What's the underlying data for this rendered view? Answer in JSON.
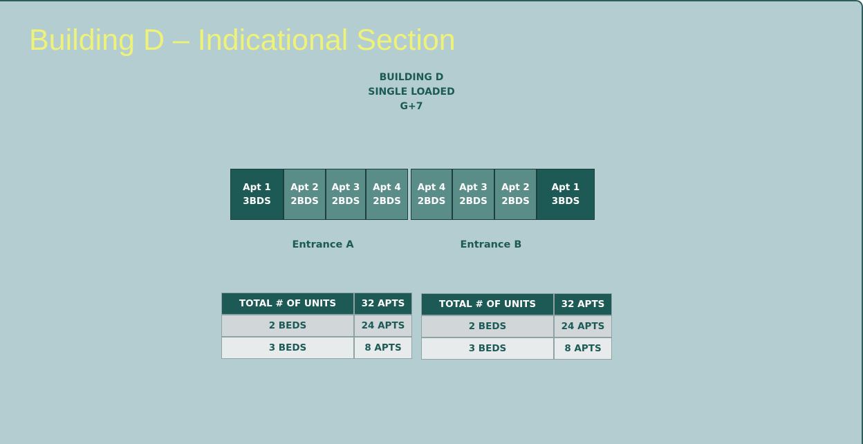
{
  "title": "Building D – Indicational Section",
  "header": {
    "lines": [
      "BUILDING D",
      "SINGLE LOADED",
      "G+7"
    ]
  },
  "entrances": [
    {
      "label": "Entrance A",
      "units": [
        {
          "name": "Apt 1",
          "beds": "3BDS"
        },
        {
          "name": "Apt 2",
          "beds": "2BDS"
        },
        {
          "name": "Apt 3",
          "beds": "2BDS"
        },
        {
          "name": "Apt 4",
          "beds": "2BDS"
        }
      ],
      "table": {
        "rows": [
          [
            "TOTAL # OF UNITS",
            "32 APTS"
          ],
          [
            "2 BEDS",
            "24 APTS"
          ],
          [
            "3 BEDS",
            "8 APTS"
          ]
        ]
      }
    },
    {
      "label": "Entrance B",
      "units": [
        {
          "name": "Apt 4",
          "beds": "2BDS"
        },
        {
          "name": "Apt 3",
          "beds": "2BDS"
        },
        {
          "name": "Apt 2",
          "beds": "2BDS"
        },
        {
          "name": "Apt 1",
          "beds": "3BDS"
        }
      ],
      "table": {
        "rows": [
          [
            "TOTAL # OF UNITS",
            "32 APTS"
          ],
          [
            "2 BEDS",
            "24 APTS"
          ],
          [
            "3 BEDS",
            "8 APTS"
          ]
        ]
      }
    }
  ]
}
